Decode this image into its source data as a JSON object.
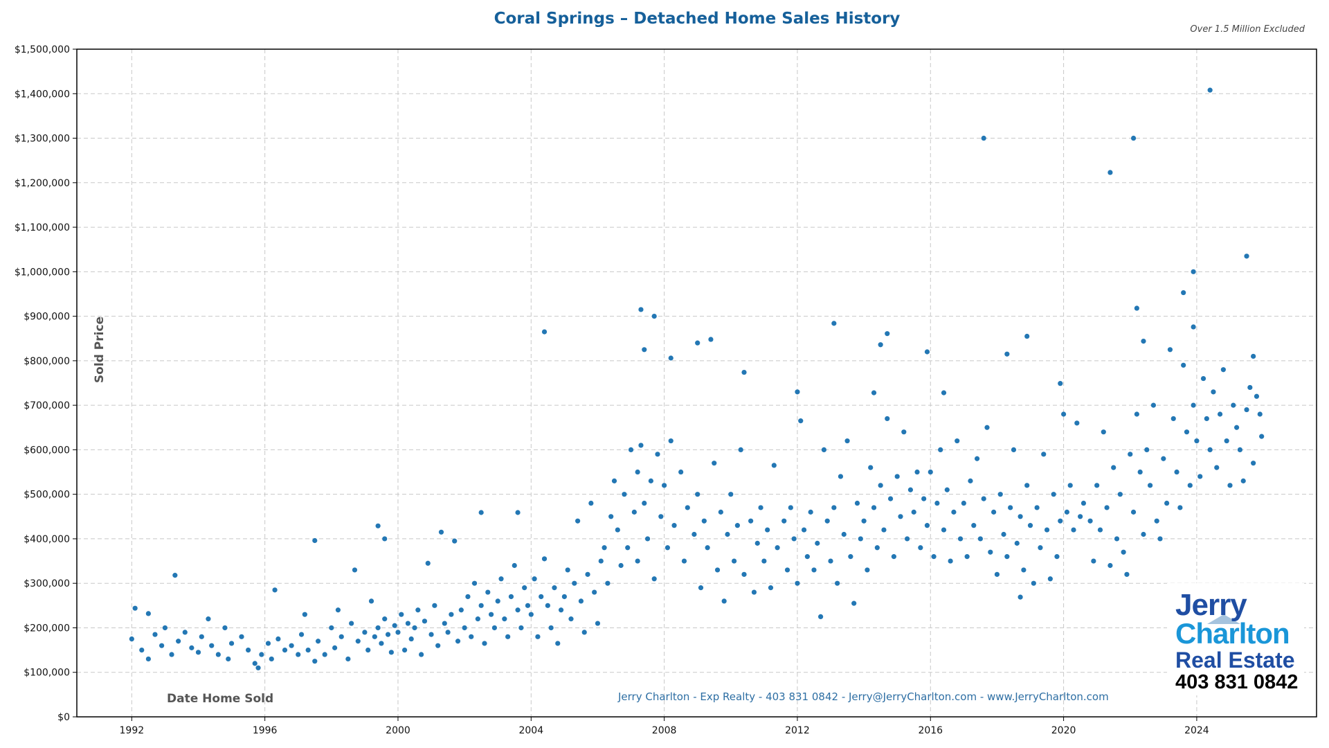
{
  "chart_data": {
    "type": "scatter",
    "title": "Coral Springs – Detached Home Sales History",
    "subtitle": "Over 1.5 Million Excluded",
    "xlabel": "Date Home Sold",
    "ylabel": "Sold Price",
    "xlim": [
      1990.35,
      2027.6
    ],
    "ylim": [
      0,
      1500000
    ],
    "x_ticks": [
      "1992",
      "1996",
      "2000",
      "2004",
      "2008",
      "2012",
      "2016",
      "2020",
      "2024"
    ],
    "y_ticks": [
      "$0",
      "$100,000",
      "$200,000",
      "$300,000",
      "$400,000",
      "$500,000",
      "$600,000",
      "$700,000",
      "$800,000",
      "$900,000",
      "$1,000,000",
      "$1,100,000",
      "$1,200,000",
      "$1,300,000",
      "$1,400,000",
      "$1,500,000"
    ],
    "grid": true,
    "marker_color": "#2377b4",
    "points": [
      [
        1992.0,
        175000
      ],
      [
        1992.1,
        244000
      ],
      [
        1992.3,
        150000
      ],
      [
        1992.5,
        130000
      ],
      [
        1992.5,
        232000
      ],
      [
        1992.7,
        185000
      ],
      [
        1992.9,
        160000
      ],
      [
        1993.0,
        200000
      ],
      [
        1993.2,
        140000
      ],
      [
        1993.3,
        318000
      ],
      [
        1993.4,
        170000
      ],
      [
        1993.6,
        190000
      ],
      [
        1993.8,
        155000
      ],
      [
        1994.0,
        145000
      ],
      [
        1994.1,
        180000
      ],
      [
        1994.3,
        220000
      ],
      [
        1994.4,
        160000
      ],
      [
        1994.6,
        140000
      ],
      [
        1994.8,
        200000
      ],
      [
        1994.9,
        130000
      ],
      [
        1995.0,
        165000
      ],
      [
        1995.3,
        180000
      ],
      [
        1995.5,
        150000
      ],
      [
        1995.7,
        120000
      ],
      [
        1995.8,
        110000
      ],
      [
        1995.9,
        140000
      ],
      [
        1996.1,
        165000
      ],
      [
        1996.2,
        130000
      ],
      [
        1996.3,
        285000
      ],
      [
        1996.4,
        175000
      ],
      [
        1996.6,
        150000
      ],
      [
        1996.8,
        160000
      ],
      [
        1997.0,
        140000
      ],
      [
        1997.1,
        185000
      ],
      [
        1997.2,
        230000
      ],
      [
        1997.3,
        150000
      ],
      [
        1997.5,
        125000
      ],
      [
        1997.5,
        396000
      ],
      [
        1997.6,
        170000
      ],
      [
        1997.8,
        140000
      ],
      [
        1998.0,
        200000
      ],
      [
        1998.1,
        155000
      ],
      [
        1998.2,
        240000
      ],
      [
        1998.3,
        180000
      ],
      [
        1998.5,
        130000
      ],
      [
        1998.6,
        210000
      ],
      [
        1998.7,
        330000
      ],
      [
        1998.8,
        170000
      ],
      [
        1999.0,
        190000
      ],
      [
        1999.1,
        150000
      ],
      [
        1999.2,
        260000
      ],
      [
        1999.3,
        180000
      ],
      [
        1999.4,
        200000
      ],
      [
        1999.4,
        429000
      ],
      [
        1999.5,
        165000
      ],
      [
        1999.6,
        220000
      ],
      [
        1999.6,
        400000
      ],
      [
        1999.7,
        185000
      ],
      [
        1999.8,
        145000
      ],
      [
        1999.9,
        205000
      ],
      [
        2000.0,
        190000
      ],
      [
        2000.1,
        230000
      ],
      [
        2000.2,
        150000
      ],
      [
        2000.3,
        210000
      ],
      [
        2000.4,
        175000
      ],
      [
        2000.5,
        200000
      ],
      [
        2000.6,
        240000
      ],
      [
        2000.7,
        140000
      ],
      [
        2000.8,
        215000
      ],
      [
        2000.9,
        345000
      ],
      [
        2001.0,
        185000
      ],
      [
        2001.1,
        250000
      ],
      [
        2001.2,
        160000
      ],
      [
        2001.3,
        415000
      ],
      [
        2001.4,
        210000
      ],
      [
        2001.5,
        190000
      ],
      [
        2001.6,
        230000
      ],
      [
        2001.7,
        395000
      ],
      [
        2001.8,
        170000
      ],
      [
        2001.9,
        240000
      ],
      [
        2002.0,
        200000
      ],
      [
        2002.1,
        270000
      ],
      [
        2002.2,
        180000
      ],
      [
        2002.3,
        300000
      ],
      [
        2002.4,
        220000
      ],
      [
        2002.5,
        250000
      ],
      [
        2002.5,
        459000
      ],
      [
        2002.6,
        165000
      ],
      [
        2002.7,
        280000
      ],
      [
        2002.8,
        230000
      ],
      [
        2002.9,
        200000
      ],
      [
        2003.0,
        260000
      ],
      [
        2003.1,
        310000
      ],
      [
        2003.2,
        220000
      ],
      [
        2003.3,
        180000
      ],
      [
        2003.4,
        270000
      ],
      [
        2003.5,
        340000
      ],
      [
        2003.6,
        240000
      ],
      [
        2003.6,
        459000
      ],
      [
        2003.7,
        200000
      ],
      [
        2003.8,
        290000
      ],
      [
        2003.9,
        250000
      ],
      [
        2004.0,
        230000
      ],
      [
        2004.1,
        310000
      ],
      [
        2004.2,
        180000
      ],
      [
        2004.3,
        270000
      ],
      [
        2004.4,
        355000
      ],
      [
        2004.4,
        865000
      ],
      [
        2004.5,
        250000
      ],
      [
        2004.6,
        200000
      ],
      [
        2004.7,
        290000
      ],
      [
        2004.8,
        165000
      ],
      [
        2004.9,
        240000
      ],
      [
        2005.0,
        270000
      ],
      [
        2005.1,
        330000
      ],
      [
        2005.2,
        220000
      ],
      [
        2005.3,
        300000
      ],
      [
        2005.4,
        440000
      ],
      [
        2005.5,
        260000
      ],
      [
        2005.6,
        190000
      ],
      [
        2005.7,
        320000
      ],
      [
        2005.8,
        480000
      ],
      [
        2005.9,
        280000
      ],
      [
        2006.0,
        210000
      ],
      [
        2006.1,
        350000
      ],
      [
        2006.2,
        380000
      ],
      [
        2006.3,
        300000
      ],
      [
        2006.4,
        450000
      ],
      [
        2006.5,
        530000
      ],
      [
        2006.6,
        420000
      ],
      [
        2006.7,
        340000
      ],
      [
        2006.8,
        500000
      ],
      [
        2006.9,
        380000
      ],
      [
        2007.0,
        600000
      ],
      [
        2007.1,
        460000
      ],
      [
        2007.2,
        550000
      ],
      [
        2007.2,
        350000
      ],
      [
        2007.3,
        610000
      ],
      [
        2007.3,
        915000
      ],
      [
        2007.4,
        480000
      ],
      [
        2007.4,
        825000
      ],
      [
        2007.5,
        400000
      ],
      [
        2007.6,
        530000
      ],
      [
        2007.7,
        310000
      ],
      [
        2007.7,
        900000
      ],
      [
        2007.8,
        590000
      ],
      [
        2007.9,
        450000
      ],
      [
        2008.0,
        520000
      ],
      [
        2008.1,
        380000
      ],
      [
        2008.2,
        620000
      ],
      [
        2008.2,
        806000
      ],
      [
        2008.3,
        430000
      ],
      [
        2008.5,
        550000
      ],
      [
        2008.6,
        350000
      ],
      [
        2008.7,
        470000
      ],
      [
        2008.9,
        410000
      ],
      [
        2009.0,
        500000
      ],
      [
        2009.0,
        840000
      ],
      [
        2009.1,
        290000
      ],
      [
        2009.2,
        440000
      ],
      [
        2009.3,
        380000
      ],
      [
        2009.4,
        848000
      ],
      [
        2009.5,
        570000
      ],
      [
        2009.6,
        330000
      ],
      [
        2009.7,
        460000
      ],
      [
        2009.8,
        260000
      ],
      [
        2009.9,
        410000
      ],
      [
        2010.0,
        500000
      ],
      [
        2010.1,
        350000
      ],
      [
        2010.2,
        430000
      ],
      [
        2010.3,
        600000
      ],
      [
        2010.4,
        320000
      ],
      [
        2010.4,
        774000
      ],
      [
        2010.6,
        440000
      ],
      [
        2010.7,
        280000
      ],
      [
        2010.8,
        390000
      ],
      [
        2010.9,
        470000
      ],
      [
        2011.0,
        350000
      ],
      [
        2011.1,
        420000
      ],
      [
        2011.2,
        290000
      ],
      [
        2011.3,
        565000
      ],
      [
        2011.4,
        380000
      ],
      [
        2011.6,
        440000
      ],
      [
        2011.7,
        330000
      ],
      [
        2011.8,
        470000
      ],
      [
        2011.9,
        400000
      ],
      [
        2012.0,
        300000
      ],
      [
        2012.0,
        730000
      ],
      [
        2012.1,
        665000
      ],
      [
        2012.2,
        420000
      ],
      [
        2012.3,
        360000
      ],
      [
        2012.4,
        460000
      ],
      [
        2012.5,
        330000
      ],
      [
        2012.6,
        390000
      ],
      [
        2012.7,
        225000
      ],
      [
        2012.8,
        600000
      ],
      [
        2012.9,
        440000
      ],
      [
        2013.0,
        350000
      ],
      [
        2013.1,
        470000
      ],
      [
        2013.1,
        884000
      ],
      [
        2013.2,
        300000
      ],
      [
        2013.3,
        540000
      ],
      [
        2013.4,
        410000
      ],
      [
        2013.5,
        620000
      ],
      [
        2013.6,
        360000
      ],
      [
        2013.7,
        255000
      ],
      [
        2013.8,
        480000
      ],
      [
        2013.9,
        400000
      ],
      [
        2014.0,
        440000
      ],
      [
        2014.1,
        330000
      ],
      [
        2014.2,
        560000
      ],
      [
        2014.3,
        470000
      ],
      [
        2014.3,
        728000
      ],
      [
        2014.4,
        380000
      ],
      [
        2014.5,
        520000
      ],
      [
        2014.5,
        836000
      ],
      [
        2014.6,
        420000
      ],
      [
        2014.7,
        670000
      ],
      [
        2014.7,
        861000
      ],
      [
        2014.8,
        490000
      ],
      [
        2014.9,
        360000
      ],
      [
        2015.0,
        540000
      ],
      [
        2015.1,
        450000
      ],
      [
        2015.2,
        640000
      ],
      [
        2015.3,
        400000
      ],
      [
        2015.4,
        510000
      ],
      [
        2015.5,
        460000
      ],
      [
        2015.6,
        550000
      ],
      [
        2015.7,
        380000
      ],
      [
        2015.8,
        490000
      ],
      [
        2015.9,
        430000
      ],
      [
        2015.9,
        820000
      ],
      [
        2016.0,
        550000
      ],
      [
        2016.1,
        360000
      ],
      [
        2016.2,
        480000
      ],
      [
        2016.3,
        600000
      ],
      [
        2016.4,
        420000
      ],
      [
        2016.4,
        728000
      ],
      [
        2016.5,
        510000
      ],
      [
        2016.6,
        350000
      ],
      [
        2016.7,
        460000
      ],
      [
        2016.8,
        620000
      ],
      [
        2016.9,
        400000
      ],
      [
        2017.0,
        480000
      ],
      [
        2017.1,
        360000
      ],
      [
        2017.2,
        530000
      ],
      [
        2017.3,
        430000
      ],
      [
        2017.4,
        580000
      ],
      [
        2017.5,
        400000
      ],
      [
        2017.6,
        490000
      ],
      [
        2017.6,
        1300000
      ],
      [
        2017.7,
        650000
      ],
      [
        2017.8,
        370000
      ],
      [
        2017.9,
        460000
      ],
      [
        2018.0,
        320000
      ],
      [
        2018.1,
        500000
      ],
      [
        2018.2,
        410000
      ],
      [
        2018.3,
        360000
      ],
      [
        2018.3,
        815000
      ],
      [
        2018.4,
        470000
      ],
      [
        2018.5,
        600000
      ],
      [
        2018.6,
        390000
      ],
      [
        2018.7,
        450000
      ],
      [
        2018.7,
        269000
      ],
      [
        2018.8,
        330000
      ],
      [
        2018.9,
        520000
      ],
      [
        2018.9,
        855000
      ],
      [
        2019.0,
        430000
      ],
      [
        2019.1,
        300000
      ],
      [
        2019.2,
        470000
      ],
      [
        2019.3,
        380000
      ],
      [
        2019.4,
        590000
      ],
      [
        2019.5,
        420000
      ],
      [
        2019.6,
        310000
      ],
      [
        2019.7,
        500000
      ],
      [
        2019.8,
        360000
      ],
      [
        2019.9,
        440000
      ],
      [
        2019.9,
        749000
      ],
      [
        2020.0,
        680000
      ],
      [
        2020.1,
        460000
      ],
      [
        2020.2,
        520000
      ],
      [
        2020.3,
        420000
      ],
      [
        2020.4,
        660000
      ],
      [
        2020.5,
        450000
      ],
      [
        2020.6,
        480000
      ],
      [
        2020.8,
        440000
      ],
      [
        2020.9,
        350000
      ],
      [
        2021.0,
        520000
      ],
      [
        2021.1,
        420000
      ],
      [
        2021.2,
        640000
      ],
      [
        2021.3,
        470000
      ],
      [
        2021.4,
        340000
      ],
      [
        2021.4,
        1223000
      ],
      [
        2021.5,
        560000
      ],
      [
        2021.6,
        400000
      ],
      [
        2021.7,
        500000
      ],
      [
        2021.8,
        370000
      ],
      [
        2021.9,
        320000
      ],
      [
        2022.0,
        590000
      ],
      [
        2022.1,
        460000
      ],
      [
        2022.1,
        1300000
      ],
      [
        2022.2,
        680000
      ],
      [
        2022.2,
        918000
      ],
      [
        2022.3,
        550000
      ],
      [
        2022.4,
        410000
      ],
      [
        2022.4,
        844000
      ],
      [
        2022.5,
        600000
      ],
      [
        2022.6,
        520000
      ],
      [
        2022.7,
        700000
      ],
      [
        2022.8,
        440000
      ],
      [
        2022.9,
        400000
      ],
      [
        2023.0,
        580000
      ],
      [
        2023.1,
        480000
      ],
      [
        2023.2,
        825000
      ],
      [
        2023.3,
        670000
      ],
      [
        2023.4,
        550000
      ],
      [
        2023.5,
        470000
      ],
      [
        2023.6,
        790000
      ],
      [
        2023.6,
        953000
      ],
      [
        2023.7,
        640000
      ],
      [
        2023.8,
        520000
      ],
      [
        2023.9,
        700000
      ],
      [
        2023.9,
        1000000
      ],
      [
        2023.9,
        876000
      ],
      [
        2024.0,
        620000
      ],
      [
        2024.1,
        540000
      ],
      [
        2024.2,
        760000
      ],
      [
        2024.3,
        670000
      ],
      [
        2024.4,
        600000
      ],
      [
        2024.4,
        1408000
      ],
      [
        2024.5,
        730000
      ],
      [
        2024.6,
        560000
      ],
      [
        2024.7,
        680000
      ],
      [
        2024.8,
        780000
      ],
      [
        2024.9,
        620000
      ],
      [
        2025.0,
        520000
      ],
      [
        2025.1,
        700000
      ],
      [
        2025.2,
        650000
      ],
      [
        2025.3,
        600000
      ],
      [
        2025.4,
        530000
      ],
      [
        2025.5,
        690000
      ],
      [
        2025.5,
        1035000
      ],
      [
        2025.6,
        740000
      ],
      [
        2025.7,
        570000
      ],
      [
        2025.7,
        810000
      ],
      [
        2025.8,
        720000
      ],
      [
        2025.9,
        680000
      ],
      [
        2025.95,
        630000
      ]
    ]
  },
  "footer": "Jerry Charlton - Exp Realty - 403 831 0842 - Jerry@JerryCharlton.com - www.JerryCharlton.com",
  "logo": {
    "line1": "Jerry",
    "line2": "Charlton",
    "line3": "Real Estate",
    "phone": "403 831 0842"
  }
}
